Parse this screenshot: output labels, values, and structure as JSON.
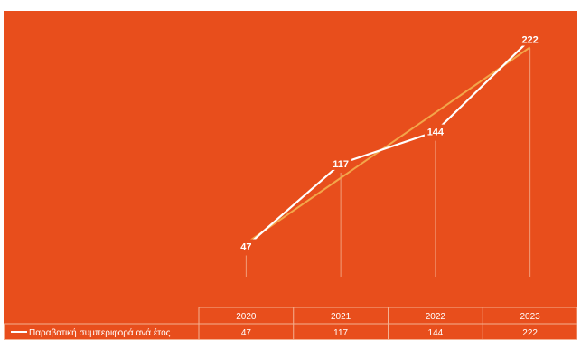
{
  "chart_data": {
    "type": "line",
    "categories": [
      "2020",
      "2021",
      "2022",
      "2023"
    ],
    "series": [
      {
        "name": "Παραβατική συμπεριφορά ανά έτος",
        "values": [
          47,
          117,
          144,
          222
        ],
        "color": "#ffffff"
      }
    ],
    "trendline": {
      "color": "#f3a64a"
    },
    "data_table": true,
    "ylim": [
      0,
      240
    ],
    "grid": false,
    "legend_position": "data-table-left",
    "title": "",
    "xlabel": "",
    "ylabel": ""
  },
  "colors": {
    "background": "#e84e1c",
    "line": "#ffffff",
    "trendline": "#f3a64a",
    "grid": "#f4b091"
  }
}
